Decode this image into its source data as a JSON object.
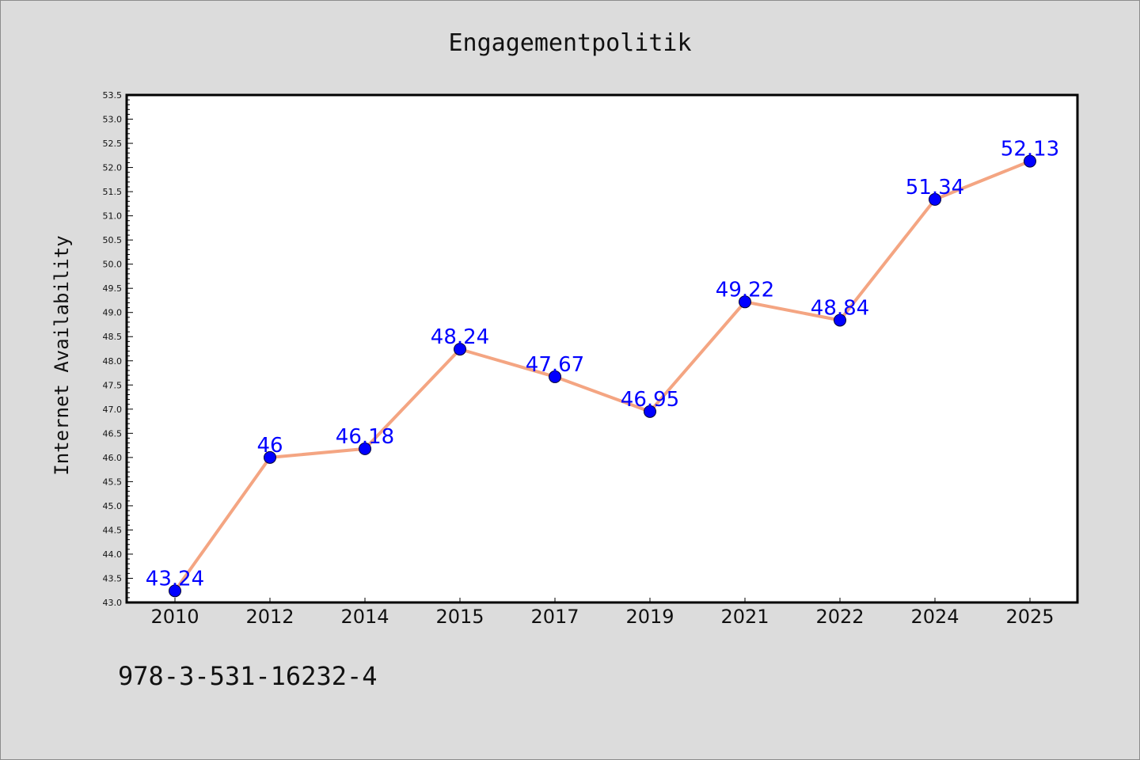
{
  "chart_data": {
    "type": "line",
    "title": "Engagementpolitik",
    "xlabel": "",
    "ylabel": "Internet Availability",
    "categories": [
      "2010",
      "2012",
      "2014",
      "2015",
      "2017",
      "2019",
      "2021",
      "2022",
      "2024",
      "2025"
    ],
    "series": [
      {
        "values": [
          43.24,
          46,
          46.18,
          48.24,
          47.67,
          46.95,
          49.22,
          48.84,
          51.34,
          52.13
        ],
        "data_labels": [
          "43.24",
          "46",
          "46.18",
          "48.24",
          "47.67",
          "46.95",
          "49.22",
          "48.84",
          "51.34",
          "52.13"
        ],
        "line_color": "#f4a582",
        "marker_color": "#0000ff"
      }
    ],
    "ylim": [
      43.0,
      53.5
    ],
    "yticks": [
      "43.0",
      "43.5",
      "44.0",
      "44.5",
      "45.0",
      "45.5",
      "46.0",
      "46.5",
      "47.0",
      "47.5",
      "48.0",
      "48.5",
      "49.0",
      "49.5",
      "50.0",
      "50.5",
      "51.0",
      "51.5",
      "52.0",
      "52.5",
      "53.0",
      "53.5"
    ],
    "grid": false,
    "legend": "none"
  },
  "footer": {
    "isbn": "978-3-531-16232-4"
  },
  "colors": {
    "background": "#dcdcdc",
    "plot_area": "#ffffff",
    "label_color": "#0000ff"
  }
}
